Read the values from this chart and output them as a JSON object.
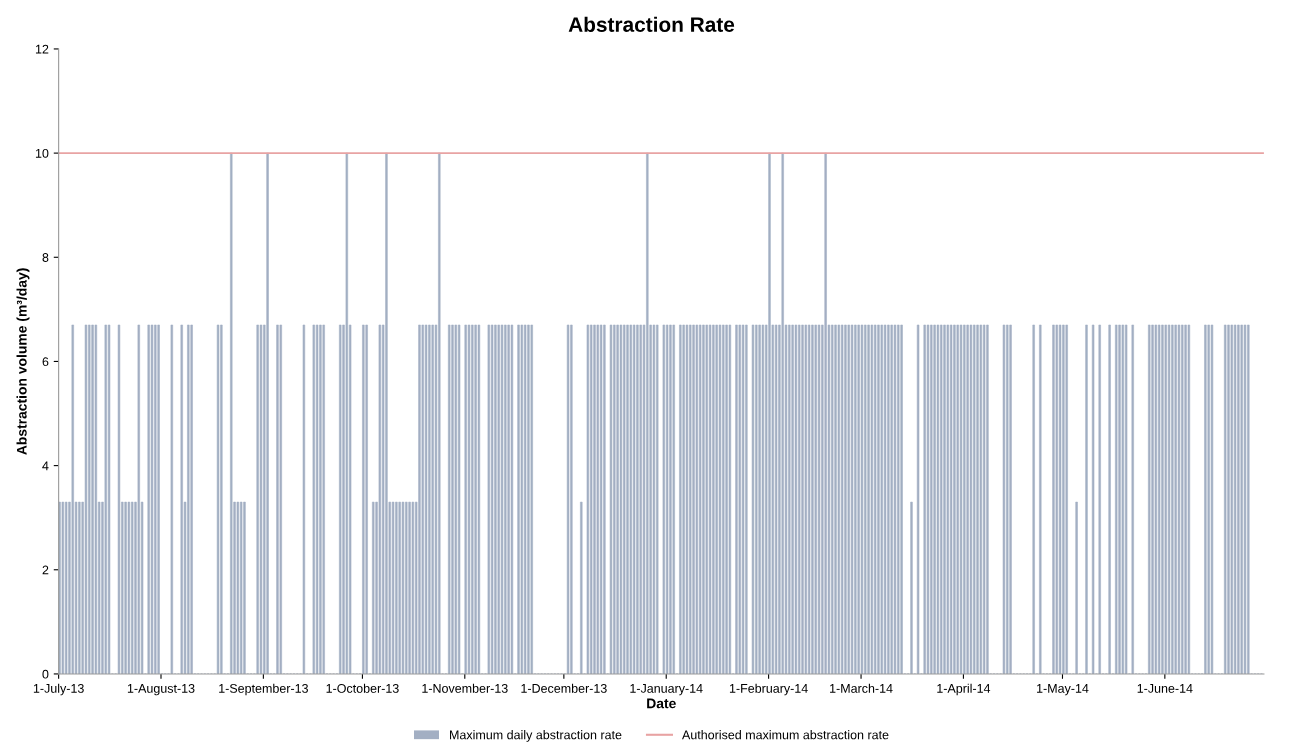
{
  "chart_data": {
    "type": "bar",
    "title": "Abstraction Rate",
    "xlabel": "Date",
    "ylabel": "Abstraction volume (m³/day)",
    "x": [
      "2013-07-01",
      "2013-07-02",
      "2013-07-03",
      "2013-07-04",
      "2013-07-05",
      "2013-07-06",
      "2013-07-07",
      "2013-07-08",
      "2013-07-09",
      "2013-07-10",
      "2013-07-11",
      "2013-07-12",
      "2013-07-13",
      "2013-07-14",
      "2013-07-15",
      "2013-07-16",
      "2013-07-17",
      "2013-07-18",
      "2013-07-19",
      "2013-07-20",
      "2013-07-21",
      "2013-07-22",
      "2013-07-23",
      "2013-07-24",
      "2013-07-25",
      "2013-07-26",
      "2013-07-27",
      "2013-07-28",
      "2013-07-29",
      "2013-07-30",
      "2013-07-31",
      "2013-08-01",
      "2013-08-02",
      "2013-08-03",
      "2013-08-04",
      "2013-08-05",
      "2013-08-06",
      "2013-08-07",
      "2013-08-08",
      "2013-08-09",
      "2013-08-10",
      "2013-08-11",
      "2013-08-12",
      "2013-08-13",
      "2013-08-14",
      "2013-08-15",
      "2013-08-16",
      "2013-08-17",
      "2013-08-18",
      "2013-08-19",
      "2013-08-20",
      "2013-08-21",
      "2013-08-22",
      "2013-08-23",
      "2013-08-24",
      "2013-08-25",
      "2013-08-26",
      "2013-08-27",
      "2013-08-28",
      "2013-08-29",
      "2013-08-30",
      "2013-08-31",
      "2013-09-01",
      "2013-09-02",
      "2013-09-03",
      "2013-09-04",
      "2013-09-05",
      "2013-09-06",
      "2013-09-07",
      "2013-09-08",
      "2013-09-09",
      "2013-09-10",
      "2013-09-11",
      "2013-09-12",
      "2013-09-13",
      "2013-09-14",
      "2013-09-15",
      "2013-09-16",
      "2013-09-17",
      "2013-09-18",
      "2013-09-19",
      "2013-09-20",
      "2013-09-21",
      "2013-09-22",
      "2013-09-23",
      "2013-09-24",
      "2013-09-25",
      "2013-09-26",
      "2013-09-27",
      "2013-09-28",
      "2013-09-29",
      "2013-09-30",
      "2013-10-01",
      "2013-10-02",
      "2013-10-03",
      "2013-10-04",
      "2013-10-05",
      "2013-10-06",
      "2013-10-07",
      "2013-10-08",
      "2013-10-09",
      "2013-10-10",
      "2013-10-11",
      "2013-10-12",
      "2013-10-13",
      "2013-10-14",
      "2013-10-15",
      "2013-10-16",
      "2013-10-17",
      "2013-10-18",
      "2013-10-19",
      "2013-10-20",
      "2013-10-21",
      "2013-10-22",
      "2013-10-23",
      "2013-10-24",
      "2013-10-25",
      "2013-10-26",
      "2013-10-27",
      "2013-10-28",
      "2013-10-29",
      "2013-10-30",
      "2013-10-31",
      "2013-11-01",
      "2013-11-02",
      "2013-11-03",
      "2013-11-04",
      "2013-11-05",
      "2013-11-06",
      "2013-11-07",
      "2013-11-08",
      "2013-11-09",
      "2013-11-10",
      "2013-11-11",
      "2013-11-12",
      "2013-11-13",
      "2013-11-14",
      "2013-11-15",
      "2013-11-16",
      "2013-11-17",
      "2013-11-18",
      "2013-11-19",
      "2013-11-20",
      "2013-11-21",
      "2013-11-22",
      "2013-11-23",
      "2013-11-24",
      "2013-11-25",
      "2013-11-26",
      "2013-11-27",
      "2013-11-28",
      "2013-11-29",
      "2013-11-30",
      "2013-12-01",
      "2013-12-02",
      "2013-12-03",
      "2013-12-04",
      "2013-12-05",
      "2013-12-06",
      "2013-12-07",
      "2013-12-08",
      "2013-12-09",
      "2013-12-10",
      "2013-12-11",
      "2013-12-12",
      "2013-12-13",
      "2013-12-14",
      "2013-12-15",
      "2013-12-16",
      "2013-12-17",
      "2013-12-18",
      "2013-12-19",
      "2013-12-20",
      "2013-12-21",
      "2013-12-22",
      "2013-12-23",
      "2013-12-24",
      "2013-12-25",
      "2013-12-26",
      "2013-12-27",
      "2013-12-28",
      "2013-12-29",
      "2013-12-30",
      "2013-12-31",
      "2014-01-01",
      "2014-01-02",
      "2014-01-03",
      "2014-01-04",
      "2014-01-05",
      "2014-01-06",
      "2014-01-07",
      "2014-01-08",
      "2014-01-09",
      "2014-01-10",
      "2014-01-11",
      "2014-01-12",
      "2014-01-13",
      "2014-01-14",
      "2014-01-15",
      "2014-01-16",
      "2014-01-17",
      "2014-01-18",
      "2014-01-19",
      "2014-01-20",
      "2014-01-21",
      "2014-01-22",
      "2014-01-23",
      "2014-01-24",
      "2014-01-25",
      "2014-01-26",
      "2014-01-27",
      "2014-01-28",
      "2014-01-29",
      "2014-01-30",
      "2014-01-31",
      "2014-02-01",
      "2014-02-02",
      "2014-02-03",
      "2014-02-04",
      "2014-02-05",
      "2014-02-06",
      "2014-02-07",
      "2014-02-08",
      "2014-02-09",
      "2014-02-10",
      "2014-02-11",
      "2014-02-12",
      "2014-02-13",
      "2014-02-14",
      "2014-02-15",
      "2014-02-16",
      "2014-02-17",
      "2014-02-18",
      "2014-02-19",
      "2014-02-20",
      "2014-02-21",
      "2014-02-22",
      "2014-02-23",
      "2014-02-24",
      "2014-02-25",
      "2014-02-26",
      "2014-02-27",
      "2014-02-28",
      "2014-03-01",
      "2014-03-02",
      "2014-03-03",
      "2014-03-04",
      "2014-03-05",
      "2014-03-06",
      "2014-03-07",
      "2014-03-08",
      "2014-03-09",
      "2014-03-10",
      "2014-03-11",
      "2014-03-12",
      "2014-03-13",
      "2014-03-14",
      "2014-03-15",
      "2014-03-16",
      "2014-03-17",
      "2014-03-18",
      "2014-03-19",
      "2014-03-20",
      "2014-03-21",
      "2014-03-22",
      "2014-03-23",
      "2014-03-24",
      "2014-03-25",
      "2014-03-26",
      "2014-03-27",
      "2014-03-28",
      "2014-03-29",
      "2014-03-30",
      "2014-03-31",
      "2014-04-01",
      "2014-04-02",
      "2014-04-03",
      "2014-04-04",
      "2014-04-05",
      "2014-04-06",
      "2014-04-07",
      "2014-04-08",
      "2014-04-09",
      "2014-04-10",
      "2014-04-11",
      "2014-04-12",
      "2014-04-13",
      "2014-04-14",
      "2014-04-15",
      "2014-04-16",
      "2014-04-17",
      "2014-04-18",
      "2014-04-19",
      "2014-04-20",
      "2014-04-21",
      "2014-04-22",
      "2014-04-23",
      "2014-04-24",
      "2014-04-25",
      "2014-04-26",
      "2014-04-27",
      "2014-04-28",
      "2014-04-29",
      "2014-04-30",
      "2014-05-01",
      "2014-05-02",
      "2014-05-03",
      "2014-05-04",
      "2014-05-05",
      "2014-05-06",
      "2014-05-07",
      "2014-05-08",
      "2014-05-09",
      "2014-05-10",
      "2014-05-11",
      "2014-05-12",
      "2014-05-13",
      "2014-05-14",
      "2014-05-15",
      "2014-05-16",
      "2014-05-17",
      "2014-05-18",
      "2014-05-19",
      "2014-05-20",
      "2014-05-21",
      "2014-05-22",
      "2014-05-23",
      "2014-05-24",
      "2014-05-25",
      "2014-05-26",
      "2014-05-27",
      "2014-05-28",
      "2014-05-29",
      "2014-05-30",
      "2014-05-31",
      "2014-06-01",
      "2014-06-02",
      "2014-06-03",
      "2014-06-04",
      "2014-06-05",
      "2014-06-06",
      "2014-06-07",
      "2014-06-08",
      "2014-06-09",
      "2014-06-10",
      "2014-06-11",
      "2014-06-12",
      "2014-06-13",
      "2014-06-14",
      "2014-06-15",
      "2014-06-16",
      "2014-06-17",
      "2014-06-18",
      "2014-06-19",
      "2014-06-20",
      "2014-06-21",
      "2014-06-22",
      "2014-06-23",
      "2014-06-24",
      "2014-06-25",
      "2014-06-26",
      "2014-06-27",
      "2014-06-28",
      "2014-06-29",
      "2014-06-30"
    ],
    "series": [
      {
        "name": "Maximum daily abstraction rate",
        "color": "#a3afc3",
        "values": [
          3.3,
          3.3,
          3.3,
          3.3,
          6.7,
          3.3,
          3.3,
          3.3,
          6.7,
          6.7,
          6.7,
          6.7,
          3.3,
          3.3,
          6.7,
          6.7,
          0,
          0,
          6.7,
          3.3,
          3.3,
          3.3,
          3.3,
          3.3,
          6.7,
          3.3,
          0,
          6.7,
          6.7,
          6.7,
          6.7,
          0,
          0,
          0,
          6.7,
          0,
          0,
          6.7,
          3.3,
          6.7,
          6.7,
          0,
          0,
          0,
          0,
          0,
          0,
          0,
          6.7,
          6.7,
          0,
          0,
          10,
          3.3,
          3.3,
          3.3,
          3.3,
          0,
          0,
          0,
          6.7,
          6.7,
          6.7,
          10,
          0,
          0,
          6.7,
          6.7,
          0,
          0,
          0,
          0,
          0,
          0,
          6.7,
          0,
          0,
          6.7,
          6.7,
          6.7,
          6.7,
          0,
          0,
          0,
          0,
          6.7,
          6.7,
          10,
          6.7,
          0,
          0,
          0,
          6.7,
          6.7,
          0,
          3.3,
          3.3,
          6.7,
          6.7,
          10,
          3.3,
          3.3,
          3.3,
          3.3,
          3.3,
          3.3,
          3.3,
          3.3,
          3.3,
          6.7,
          6.7,
          6.7,
          6.7,
          6.7,
          6.7,
          10,
          0,
          0,
          6.7,
          6.7,
          6.7,
          6.7,
          0,
          6.7,
          6.7,
          6.7,
          6.7,
          6.7,
          0,
          0,
          6.7,
          6.7,
          6.7,
          6.7,
          6.7,
          6.7,
          6.7,
          6.7,
          0,
          6.7,
          6.7,
          6.7,
          6.7,
          6.7,
          0,
          0,
          0,
          0,
          0,
          0,
          0,
          0,
          0,
          0,
          6.7,
          6.7,
          0,
          0,
          3.3,
          0,
          6.7,
          6.7,
          6.7,
          6.7,
          6.7,
          6.7,
          0,
          6.7,
          6.7,
          6.7,
          6.7,
          6.7,
          6.7,
          6.7,
          6.7,
          6.7,
          6.7,
          6.7,
          10,
          6.7,
          6.7,
          6.7,
          0,
          6.7,
          6.7,
          6.7,
          6.7,
          0,
          6.7,
          6.7,
          6.7,
          6.7,
          6.7,
          6.7,
          6.7,
          6.7,
          6.7,
          6.7,
          6.7,
          6.7,
          6.7,
          6.7,
          6.7,
          6.7,
          0,
          6.7,
          6.7,
          6.7,
          6.7,
          0,
          6.7,
          6.7,
          6.7,
          6.7,
          6.7,
          10,
          6.7,
          6.7,
          6.7,
          10,
          6.7,
          6.7,
          6.7,
          6.7,
          6.7,
          6.7,
          6.7,
          6.7,
          6.7,
          6.7,
          6.7,
          6.7,
          10,
          6.7,
          6.7,
          6.7,
          6.7,
          6.7,
          6.7,
          6.7,
          6.7,
          6.7,
          6.7,
          6.7,
          6.7,
          6.7,
          6.7,
          6.7,
          6.7,
          6.7,
          6.7,
          6.7,
          6.7,
          6.7,
          6.7,
          6.7,
          0,
          0,
          3.3,
          0,
          6.7,
          0,
          6.7,
          6.7,
          6.7,
          6.7,
          6.7,
          6.7,
          6.7,
          6.7,
          6.7,
          6.7,
          6.7,
          6.7,
          6.7,
          6.7,
          6.7,
          6.7,
          6.7,
          6.7,
          6.7,
          6.7,
          0,
          0,
          0,
          0,
          6.7,
          6.7,
          6.7,
          0,
          0,
          0,
          0,
          0,
          0,
          6.7,
          0,
          6.7,
          0,
          0,
          0,
          6.7,
          6.7,
          6.7,
          6.7,
          6.7,
          0,
          0,
          3.3,
          0,
          0,
          6.7,
          0,
          6.7,
          0,
          6.7,
          0,
          0,
          6.7,
          0,
          6.7,
          6.7,
          6.7,
          6.7,
          0,
          6.7,
          0,
          0,
          0,
          0,
          6.7,
          6.7,
          6.7,
          6.7,
          6.7,
          6.7,
          6.7,
          6.7,
          6.7,
          6.7,
          6.7,
          6.7,
          6.7,
          0,
          0,
          0,
          0,
          6.7,
          6.7,
          6.7,
          0,
          0,
          0,
          6.7,
          6.7,
          6.7,
          6.7,
          6.7,
          6.7,
          6.7,
          6.7,
          0,
          0,
          0,
          0
        ]
      },
      {
        "name": "Authorised maximum abstraction rate",
        "type": "line",
        "color": "#e8a3a3",
        "x": [
          "2013-07-01",
          "2014-07-01"
        ],
        "values": [
          10,
          10
        ]
      }
    ],
    "xlim": [
      "2013-07-01",
      "2014-07-01"
    ],
    "xticks": [
      {
        "value": "2013-07-01",
        "label": "1-July-13"
      },
      {
        "value": "2013-08-01",
        "label": "1-August-13"
      },
      {
        "value": "2013-09-01",
        "label": "1-September-13"
      },
      {
        "value": "2013-10-01",
        "label": "1-October-13"
      },
      {
        "value": "2013-11-01",
        "label": "1-November-13"
      },
      {
        "value": "2013-12-01",
        "label": "1-December-13"
      },
      {
        "value": "2014-01-01",
        "label": "1-January-14"
      },
      {
        "value": "2014-02-01",
        "label": "1-February-14"
      },
      {
        "value": "2014-03-01",
        "label": "1-March-14"
      },
      {
        "value": "2014-04-01",
        "label": "1-April-14"
      },
      {
        "value": "2014-05-01",
        "label": "1-May-14"
      },
      {
        "value": "2014-06-01",
        "label": "1-June-14"
      }
    ],
    "ylim": [
      0,
      12
    ],
    "yticks": [
      0,
      2,
      4,
      6,
      8,
      10,
      12
    ],
    "legend": "bottom",
    "grid": false
  }
}
